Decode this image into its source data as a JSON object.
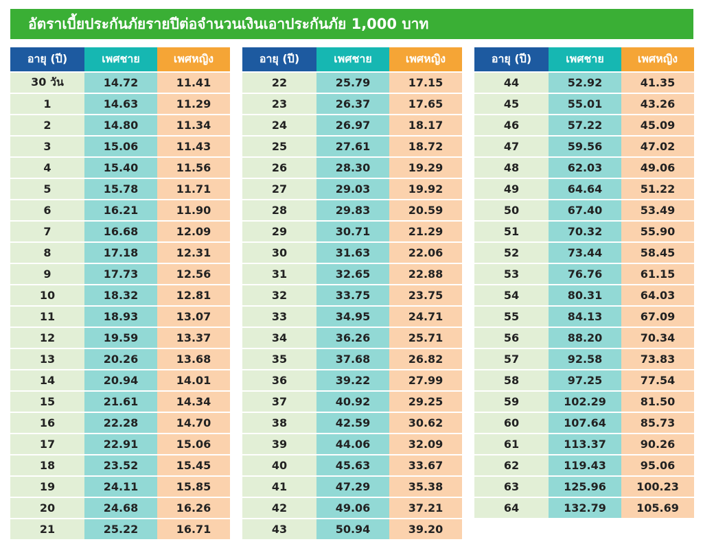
{
  "title": "อัตราเบี้ยประกันภัยรายปีต่อจำนวนเงินเอาประกันภัย 1,000 บาท",
  "headers": {
    "age": "อายุ (ปี)",
    "male": "เพศชาย",
    "female": "เพศหญิง"
  },
  "colors": {
    "title_bg": "#3aaf35",
    "age_header": "#1d5aa0",
    "male_header": "#16b7b2",
    "female_header": "#f5a536",
    "age_cell": "#e2efd6",
    "male_cell": "#92d9d5",
    "female_cell": "#fbd2ad"
  },
  "tables": [
    {
      "rows": [
        {
          "age": "30 วัน",
          "male": "14.72",
          "female": "11.41"
        },
        {
          "age": "1",
          "male": "14.63",
          "female": "11.29"
        },
        {
          "age": "2",
          "male": "14.80",
          "female": "11.34"
        },
        {
          "age": "3",
          "male": "15.06",
          "female": "11.43"
        },
        {
          "age": "4",
          "male": "15.40",
          "female": "11.56"
        },
        {
          "age": "5",
          "male": "15.78",
          "female": "11.71"
        },
        {
          "age": "6",
          "male": "16.21",
          "female": "11.90"
        },
        {
          "age": "7",
          "male": "16.68",
          "female": "12.09"
        },
        {
          "age": "8",
          "male": "17.18",
          "female": "12.31"
        },
        {
          "age": "9",
          "male": "17.73",
          "female": "12.56"
        },
        {
          "age": "10",
          "male": "18.32",
          "female": "12.81"
        },
        {
          "age": "11",
          "male": "18.93",
          "female": "13.07"
        },
        {
          "age": "12",
          "male": "19.59",
          "female": "13.37"
        },
        {
          "age": "13",
          "male": "20.26",
          "female": "13.68"
        },
        {
          "age": "14",
          "male": "20.94",
          "female": "14.01"
        },
        {
          "age": "15",
          "male": "21.61",
          "female": "14.34"
        },
        {
          "age": "16",
          "male": "22.28",
          "female": "14.70"
        },
        {
          "age": "17",
          "male": "22.91",
          "female": "15.06"
        },
        {
          "age": "18",
          "male": "23.52",
          "female": "15.45"
        },
        {
          "age": "19",
          "male": "24.11",
          "female": "15.85"
        },
        {
          "age": "20",
          "male": "24.68",
          "female": "16.26"
        },
        {
          "age": "21",
          "male": "25.22",
          "female": "16.71"
        }
      ]
    },
    {
      "rows": [
        {
          "age": "22",
          "male": "25.79",
          "female": "17.15"
        },
        {
          "age": "23",
          "male": "26.37",
          "female": "17.65"
        },
        {
          "age": "24",
          "male": "26.97",
          "female": "18.17"
        },
        {
          "age": "25",
          "male": "27.61",
          "female": "18.72"
        },
        {
          "age": "26",
          "male": "28.30",
          "female": "19.29"
        },
        {
          "age": "27",
          "male": "29.03",
          "female": "19.92"
        },
        {
          "age": "28",
          "male": "29.83",
          "female": "20.59"
        },
        {
          "age": "29",
          "male": "30.71",
          "female": "21.29"
        },
        {
          "age": "30",
          "male": "31.63",
          "female": "22.06"
        },
        {
          "age": "31",
          "male": "32.65",
          "female": "22.88"
        },
        {
          "age": "32",
          "male": "33.75",
          "female": "23.75"
        },
        {
          "age": "33",
          "male": "34.95",
          "female": "24.71"
        },
        {
          "age": "34",
          "male": "36.26",
          "female": "25.71"
        },
        {
          "age": "35",
          "male": "37.68",
          "female": "26.82"
        },
        {
          "age": "36",
          "male": "39.22",
          "female": "27.99"
        },
        {
          "age": "37",
          "male": "40.92",
          "female": "29.25"
        },
        {
          "age": "38",
          "male": "42.59",
          "female": "30.62"
        },
        {
          "age": "39",
          "male": "44.06",
          "female": "32.09"
        },
        {
          "age": "40",
          "male": "45.63",
          "female": "33.67"
        },
        {
          "age": "41",
          "male": "47.29",
          "female": "35.38"
        },
        {
          "age": "42",
          "male": "49.06",
          "female": "37.21"
        },
        {
          "age": "43",
          "male": "50.94",
          "female": "39.20"
        }
      ]
    },
    {
      "rows": [
        {
          "age": "44",
          "male": "52.92",
          "female": "41.35"
        },
        {
          "age": "45",
          "male": "55.01",
          "female": "43.26"
        },
        {
          "age": "46",
          "male": "57.22",
          "female": "45.09"
        },
        {
          "age": "47",
          "male": "59.56",
          "female": "47.02"
        },
        {
          "age": "48",
          "male": "62.03",
          "female": "49.06"
        },
        {
          "age": "49",
          "male": "64.64",
          "female": "51.22"
        },
        {
          "age": "50",
          "male": "67.40",
          "female": "53.49"
        },
        {
          "age": "51",
          "male": "70.32",
          "female": "55.90"
        },
        {
          "age": "52",
          "male": "73.44",
          "female": "58.45"
        },
        {
          "age": "53",
          "male": "76.76",
          "female": "61.15"
        },
        {
          "age": "54",
          "male": "80.31",
          "female": "64.03"
        },
        {
          "age": "55",
          "male": "84.13",
          "female": "67.09"
        },
        {
          "age": "56",
          "male": "88.20",
          "female": "70.34"
        },
        {
          "age": "57",
          "male": "92.58",
          "female": "73.83"
        },
        {
          "age": "58",
          "male": "97.25",
          "female": "77.54"
        },
        {
          "age": "59",
          "male": "102.29",
          "female": "81.50"
        },
        {
          "age": "60",
          "male": "107.64",
          "female": "85.73"
        },
        {
          "age": "61",
          "male": "113.37",
          "female": "90.26"
        },
        {
          "age": "62",
          "male": "119.43",
          "female": "95.06"
        },
        {
          "age": "63",
          "male": "125.96",
          "female": "100.23"
        },
        {
          "age": "64",
          "male": "132.79",
          "female": "105.69"
        }
      ]
    }
  ]
}
